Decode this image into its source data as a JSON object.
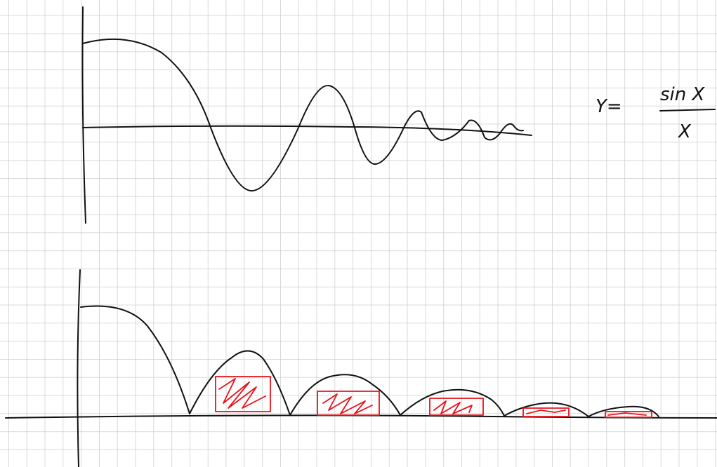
{
  "formula": {
    "lhs": "Y=",
    "numerator": "sin X",
    "denominator": "X"
  }
}
